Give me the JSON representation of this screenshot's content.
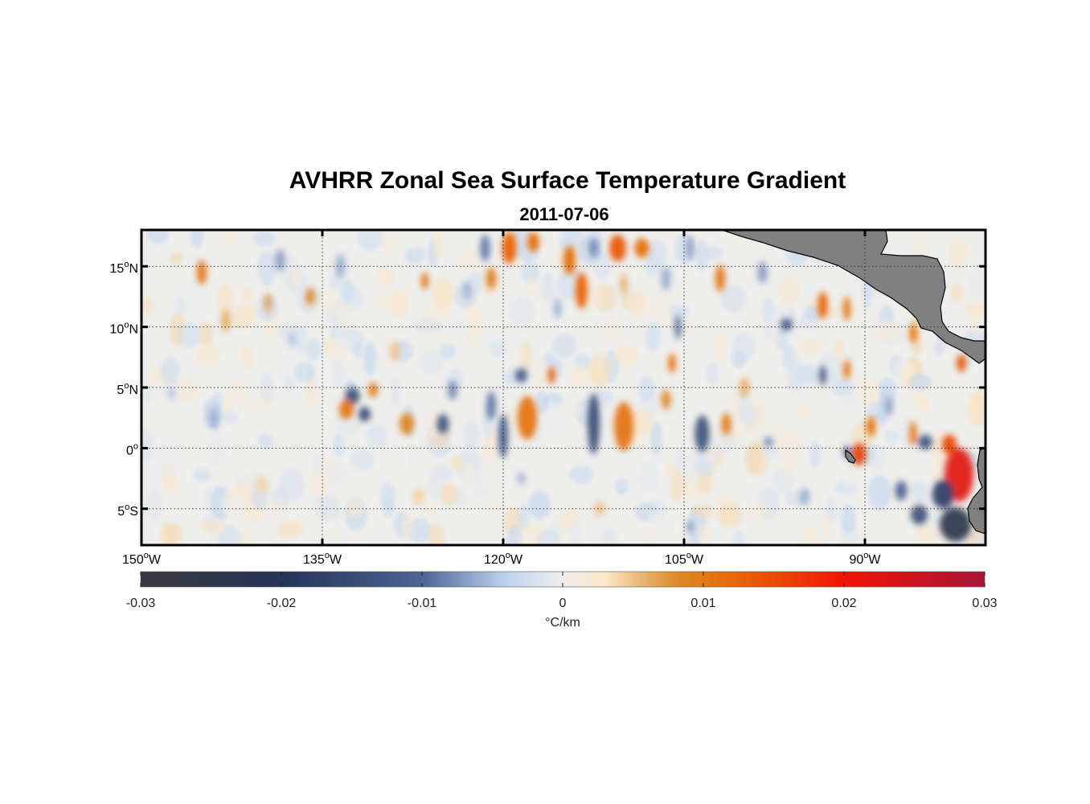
{
  "chart_data": {
    "type": "heatmap",
    "title": "AVHRR Zonal Sea Surface Temperature Gradient",
    "subtitle": "2011-07-06",
    "lon_range": [
      -150,
      -80
    ],
    "lat_range": [
      -8,
      18
    ],
    "x_ticks": [
      {
        "value": -150,
        "num": "150",
        "deg": "o",
        "hemi": "W"
      },
      {
        "value": -135,
        "num": "135",
        "deg": "o",
        "hemi": "W"
      },
      {
        "value": -120,
        "num": "120",
        "deg": "o",
        "hemi": "W"
      },
      {
        "value": -105,
        "num": "105",
        "deg": "o",
        "hemi": "W"
      },
      {
        "value": -90,
        "num": "90",
        "deg": "o",
        "hemi": "W"
      }
    ],
    "y_ticks": [
      {
        "value": 15,
        "num": "15",
        "deg": "o",
        "hemi": "N"
      },
      {
        "value": 10,
        "num": "10",
        "deg": "o",
        "hemi": "N"
      },
      {
        "value": 5,
        "num": "5",
        "deg": "o",
        "hemi": "N"
      },
      {
        "value": 0,
        "num": "0",
        "deg": "o",
        "hemi": ""
      },
      {
        "value": -5,
        "num": "5",
        "deg": "o",
        "hemi": "S"
      }
    ],
    "grid": true,
    "colorbar": {
      "range": [
        -0.03,
        0.03
      ],
      "ticks": [
        "-0.03",
        "-0.02",
        "-0.01",
        "0",
        "0.01",
        "0.02",
        "0.03"
      ],
      "label_deg": "°",
      "label_unit": "C/km",
      "stops": [
        {
          "value": -0.03,
          "color": "#3a3a3d"
        },
        {
          "value": -0.02,
          "color": "#253458"
        },
        {
          "value": -0.01,
          "color": "#4d6494"
        },
        {
          "value": -0.004,
          "color": "#bfd3ef"
        },
        {
          "value": 0,
          "color": "#eeeeec"
        },
        {
          "value": 0.003,
          "color": "#fbe7c8"
        },
        {
          "value": 0.008,
          "color": "#dc8a2a"
        },
        {
          "value": 0.012,
          "color": "#e66a06"
        },
        {
          "value": 0.02,
          "color": "#f21405"
        },
        {
          "value": 0.03,
          "color": "#a8143a"
        }
      ]
    },
    "features": [
      {
        "lon": -145.0,
        "lat": 14.5,
        "v": 0.011,
        "rx": 0.4,
        "ry": 1.0
      },
      {
        "lon": -143.0,
        "lat": 10.5,
        "v": 0.006,
        "rx": 0.4,
        "ry": 0.9
      },
      {
        "lon": -138.5,
        "lat": 15.5,
        "v": -0.007,
        "rx": 0.4,
        "ry": 0.9
      },
      {
        "lon": -136.0,
        "lat": 12.5,
        "v": 0.008,
        "rx": 0.4,
        "ry": 0.7
      },
      {
        "lon": -133.5,
        "lat": 15.0,
        "v": -0.006,
        "rx": 0.4,
        "ry": 1.0
      },
      {
        "lon": -132.5,
        "lat": 4.3,
        "v": -0.014,
        "rx": 0.6,
        "ry": 0.7
      },
      {
        "lon": -130.8,
        "lat": 4.8,
        "v": 0.01,
        "rx": 0.4,
        "ry": 0.6
      },
      {
        "lon": -133.0,
        "lat": 3.2,
        "v": 0.011,
        "rx": 0.6,
        "ry": 0.8
      },
      {
        "lon": -131.5,
        "lat": 2.8,
        "v": -0.015,
        "rx": 0.5,
        "ry": 0.6
      },
      {
        "lon": -126.5,
        "lat": 13.8,
        "v": 0.011,
        "rx": 0.3,
        "ry": 0.7
      },
      {
        "lon": -124.2,
        "lat": 4.8,
        "v": -0.008,
        "rx": 0.4,
        "ry": 0.8
      },
      {
        "lon": -125.0,
        "lat": 2.0,
        "v": -0.013,
        "rx": 0.5,
        "ry": 0.8
      },
      {
        "lon": -121.5,
        "lat": 16.5,
        "v": -0.009,
        "rx": 0.4,
        "ry": 1.1
      },
      {
        "lon": -119.5,
        "lat": 16.5,
        "v": 0.013,
        "rx": 0.6,
        "ry": 1.3
      },
      {
        "lon": -121.0,
        "lat": 14.0,
        "v": 0.01,
        "rx": 0.4,
        "ry": 0.9
      },
      {
        "lon": -117.5,
        "lat": 17.0,
        "v": 0.012,
        "rx": 0.5,
        "ry": 0.8
      },
      {
        "lon": -114.5,
        "lat": 15.5,
        "v": 0.012,
        "rx": 0.5,
        "ry": 1.2
      },
      {
        "lon": -113.5,
        "lat": 13.0,
        "v": 0.013,
        "rx": 0.5,
        "ry": 1.5
      },
      {
        "lon": -112.5,
        "lat": 16.5,
        "v": -0.008,
        "rx": 0.4,
        "ry": 0.8
      },
      {
        "lon": -110.5,
        "lat": 16.5,
        "v": 0.014,
        "rx": 0.7,
        "ry": 1.1
      },
      {
        "lon": -108.5,
        "lat": 16.5,
        "v": 0.012,
        "rx": 0.6,
        "ry": 0.8
      },
      {
        "lon": -106.5,
        "lat": 14.0,
        "v": -0.006,
        "rx": 0.4,
        "ry": 1.0
      },
      {
        "lon": -105.5,
        "lat": 10.0,
        "v": -0.009,
        "rx": 0.3,
        "ry": 1.0
      },
      {
        "lon": -104.5,
        "lat": 16.5,
        "v": -0.007,
        "rx": 0.3,
        "ry": 1.0
      },
      {
        "lon": -102.0,
        "lat": 14.0,
        "v": 0.011,
        "rx": 0.4,
        "ry": 1.1
      },
      {
        "lon": -118.5,
        "lat": 6.0,
        "v": -0.012,
        "rx": 0.5,
        "ry": 0.6
      },
      {
        "lon": -116.0,
        "lat": 6.0,
        "v": 0.013,
        "rx": 0.3,
        "ry": 0.7
      },
      {
        "lon": -118.0,
        "lat": 2.5,
        "v": 0.011,
        "rx": 0.8,
        "ry": 1.8
      },
      {
        "lon": -120.0,
        "lat": 1.0,
        "v": -0.012,
        "rx": 0.4,
        "ry": 1.8
      },
      {
        "lon": -121.0,
        "lat": 3.5,
        "v": -0.009,
        "rx": 0.4,
        "ry": 1.2
      },
      {
        "lon": -112.5,
        "lat": 2.0,
        "v": -0.015,
        "rx": 0.5,
        "ry": 2.5
      },
      {
        "lon": -110.0,
        "lat": 1.8,
        "v": 0.011,
        "rx": 0.8,
        "ry": 2.0
      },
      {
        "lon": -106.0,
        "lat": 7.0,
        "v": 0.012,
        "rx": 0.3,
        "ry": 0.8
      },
      {
        "lon": -106.5,
        "lat": 4.0,
        "v": 0.008,
        "rx": 0.4,
        "ry": 0.8
      },
      {
        "lon": -103.5,
        "lat": 1.2,
        "v": -0.014,
        "rx": 0.6,
        "ry": 1.5
      },
      {
        "lon": -101.5,
        "lat": 2.0,
        "v": 0.01,
        "rx": 0.4,
        "ry": 0.9
      },
      {
        "lon": -128.0,
        "lat": 2.0,
        "v": 0.009,
        "rx": 0.6,
        "ry": 0.9
      },
      {
        "lon": -96.5,
        "lat": 10.2,
        "v": -0.013,
        "rx": 0.5,
        "ry": 0.5
      },
      {
        "lon": -93.5,
        "lat": 11.8,
        "v": 0.013,
        "rx": 0.4,
        "ry": 1.1
      },
      {
        "lon": -91.5,
        "lat": 11.5,
        "v": 0.011,
        "rx": 0.3,
        "ry": 1.0
      },
      {
        "lon": -93.5,
        "lat": 6.0,
        "v": -0.012,
        "rx": 0.3,
        "ry": 0.8
      },
      {
        "lon": -91.5,
        "lat": 6.5,
        "v": 0.011,
        "rx": 0.3,
        "ry": 0.8
      },
      {
        "lon": -86.0,
        "lat": 9.5,
        "v": 0.012,
        "rx": 0.3,
        "ry": 0.8
      },
      {
        "lon": -82.0,
        "lat": 7.0,
        "v": 0.014,
        "rx": 0.4,
        "ry": 0.7
      },
      {
        "lon": -89.5,
        "lat": 1.8,
        "v": 0.011,
        "rx": 0.4,
        "ry": 0.8
      },
      {
        "lon": -86.0,
        "lat": 1.2,
        "v": 0.011,
        "rx": 0.3,
        "ry": 1.0
      },
      {
        "lon": -85.0,
        "lat": 0.5,
        "v": -0.013,
        "rx": 0.6,
        "ry": 0.6
      },
      {
        "lon": -90.5,
        "lat": -0.5,
        "v": 0.016,
        "rx": 0.6,
        "ry": 0.9
      },
      {
        "lon": -91.5,
        "lat": -0.3,
        "v": -0.012,
        "rx": 0.3,
        "ry": 0.5
      },
      {
        "lon": -82.2,
        "lat": -2.2,
        "v": 0.022,
        "rx": 1.2,
        "ry": 2.2
      },
      {
        "lon": -83.0,
        "lat": 0.3,
        "v": 0.016,
        "rx": 0.6,
        "ry": 0.8
      },
      {
        "lon": -83.5,
        "lat": -3.8,
        "v": -0.018,
        "rx": 0.9,
        "ry": 1.2
      },
      {
        "lon": -82.5,
        "lat": -6.3,
        "v": -0.024,
        "rx": 1.3,
        "ry": 1.4
      },
      {
        "lon": -85.5,
        "lat": -5.5,
        "v": -0.014,
        "rx": 0.7,
        "ry": 0.8
      },
      {
        "lon": -87.0,
        "lat": -3.5,
        "v": -0.01,
        "rx": 0.5,
        "ry": 0.8
      },
      {
        "lon": -98.0,
        "lat": 0.5,
        "v": -0.008,
        "rx": 0.4,
        "ry": 0.4
      },
      {
        "lon": -144.0,
        "lat": 2.5,
        "v": -0.006,
        "rx": 0.4,
        "ry": 0.9
      },
      {
        "lon": -147.5,
        "lat": 4.5,
        "v": -0.005,
        "rx": 0.3,
        "ry": 0.5
      },
      {
        "lon": -139.5,
        "lat": 12.0,
        "v": 0.007,
        "rx": 0.3,
        "ry": 0.8
      },
      {
        "lon": -137.5,
        "lat": 9.0,
        "v": -0.005,
        "rx": 0.3,
        "ry": 0.6
      },
      {
        "lon": -115.5,
        "lat": 11.5,
        "v": -0.006,
        "rx": 0.3,
        "ry": 0.8
      },
      {
        "lon": -129.0,
        "lat": 8.0,
        "v": 0.005,
        "rx": 0.4,
        "ry": 0.8
      },
      {
        "lon": -123.0,
        "lat": 13.0,
        "v": -0.006,
        "rx": 0.3,
        "ry": 0.8
      },
      {
        "lon": -110.0,
        "lat": 13.5,
        "v": 0.006,
        "rx": 0.3,
        "ry": 0.9
      },
      {
        "lon": -98.5,
        "lat": 14.5,
        "v": -0.007,
        "rx": 0.4,
        "ry": 0.9
      },
      {
        "lon": -100.0,
        "lat": 5.0,
        "v": 0.006,
        "rx": 0.4,
        "ry": 0.8
      },
      {
        "lon": -88.0,
        "lat": 3.5,
        "v": -0.007,
        "rx": 0.3,
        "ry": 0.8
      },
      {
        "lon": -95.0,
        "lat": -4.0,
        "v": -0.006,
        "rx": 0.4,
        "ry": 0.7
      },
      {
        "lon": -104.5,
        "lat": -6.5,
        "v": -0.007,
        "rx": 0.3,
        "ry": 0.5
      },
      {
        "lon": -112.0,
        "lat": -5.0,
        "v": 0.005,
        "rx": 0.4,
        "ry": 0.6
      },
      {
        "lon": -127.0,
        "lat": -4.0,
        "v": 0.004,
        "rx": 0.5,
        "ry": 0.7
      },
      {
        "lon": -118.5,
        "lat": -2.5,
        "v": -0.006,
        "rx": 0.3,
        "ry": 0.5
      },
      {
        "lon": -140.0,
        "lat": -3.0,
        "v": 0.004,
        "rx": 0.5,
        "ry": 0.7
      }
    ]
  }
}
